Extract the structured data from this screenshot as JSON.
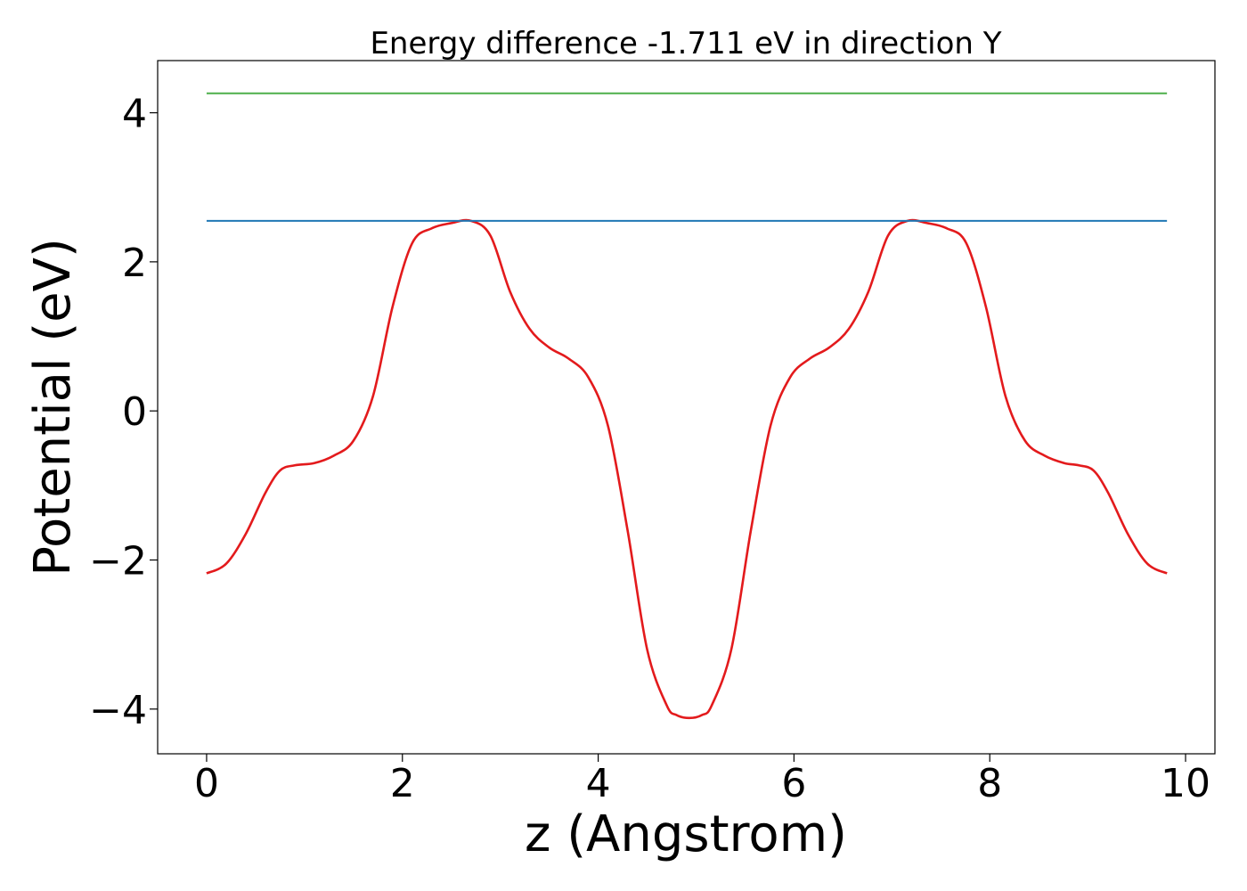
{
  "chart_data": {
    "type": "line",
    "title": "Energy difference -1.711 eV in direction Y",
    "xlabel": "z (Angstrom)",
    "ylabel": "Potential (eV)",
    "xlim": [
      -0.5,
      10.3
    ],
    "ylim": [
      -4.6,
      4.7
    ],
    "xticks": [
      0,
      2,
      4,
      6,
      8,
      10
    ],
    "yticks": [
      -4,
      -2,
      0,
      2,
      4
    ],
    "grid": false,
    "colors": {
      "potential": "#e31a1c",
      "upper": "#4daf4a",
      "lower": "#1f77b4"
    },
    "series": [
      {
        "x": [
          0,
          0.2,
          0.4,
          0.6,
          0.75,
          0.9,
          1.1,
          1.3,
          1.5,
          1.7,
          1.9,
          2.1,
          2.3,
          2.5,
          2.7,
          2.9,
          3.1,
          3.3,
          3.5,
          3.7,
          3.9,
          4.1,
          4.3,
          4.5,
          4.7,
          4.8,
          4.93,
          5.06,
          5.16,
          5.36,
          5.56,
          5.76,
          5.96,
          6.16,
          6.36,
          6.56,
          6.76,
          6.96,
          7.16,
          7.36,
          7.56,
          7.76,
          7.96,
          8.16,
          8.36,
          8.56,
          8.76,
          8.91,
          9.06,
          9.21,
          9.41,
          9.61,
          9.81
        ],
        "y": [
          -2.18,
          -2.05,
          -1.65,
          -1.1,
          -0.8,
          -0.73,
          -0.7,
          -0.6,
          -0.4,
          0.2,
          1.4,
          2.25,
          2.45,
          2.52,
          2.55,
          2.35,
          1.6,
          1.1,
          0.85,
          0.7,
          0.45,
          -0.2,
          -1.6,
          -3.2,
          -3.95,
          -4.08,
          -4.12,
          -4.08,
          -3.95,
          -3.2,
          -1.6,
          -0.2,
          0.45,
          0.7,
          0.85,
          1.1,
          1.6,
          2.35,
          2.55,
          2.52,
          2.45,
          2.25,
          1.4,
          0.2,
          -0.4,
          -0.6,
          -0.7,
          -0.73,
          -0.8,
          -1.1,
          -1.65,
          -2.05,
          -2.18
        ]
      },
      {
        "x": [
          0,
          9.81
        ],
        "y": [
          4.26,
          4.26
        ]
      },
      {
        "x": [
          0,
          9.81
        ],
        "y": [
          2.55,
          2.55
        ]
      }
    ]
  }
}
